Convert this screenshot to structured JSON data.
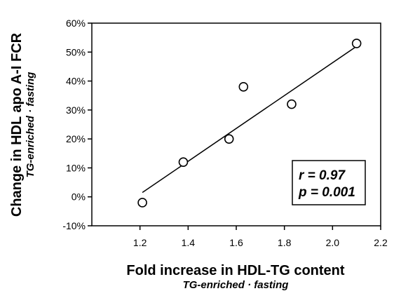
{
  "chart_data": {
    "type": "scatter",
    "xlabel": "Fold increase in HDL-TG content",
    "xlabel_sub": "TG-enriched · fasting",
    "ylabel": "Change in HDL apo A-I FCR",
    "ylabel_sub": "TG-enriched · fasting",
    "xlim": [
      1.0,
      2.2
    ],
    "ylim": [
      -10,
      60
    ],
    "x_ticks": [
      1.2,
      1.4,
      1.6,
      1.8,
      2.0,
      2.2
    ],
    "x_tick_labels": [
      "1.2",
      "1.4",
      "1.6",
      "1.8",
      "2.0",
      "2.2"
    ],
    "y_ticks": [
      -10,
      0,
      10,
      20,
      30,
      40,
      50,
      60
    ],
    "y_tick_labels": [
      "-10%",
      "0%",
      "10%",
      "20%",
      "30%",
      "40%",
      "50%",
      "60%"
    ],
    "grid": false,
    "series": [
      {
        "x": [
          1.21,
          1.38,
          1.57,
          1.63,
          1.83,
          2.1
        ],
        "y": [
          -2,
          12,
          20,
          38,
          32,
          53
        ]
      }
    ],
    "regression_line": {
      "x": [
        1.21,
        2.1
      ],
      "y": [
        1.5,
        52
      ]
    },
    "annotation": {
      "r": "r = 0.97",
      "p": "p = 0.001",
      "placement": "bottom-right"
    }
  }
}
